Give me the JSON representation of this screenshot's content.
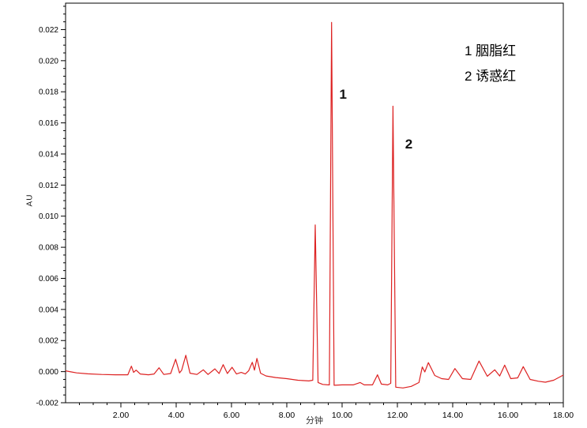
{
  "chart_data": {
    "type": "line",
    "xlabel": "分钟",
    "ylabel": "AU",
    "xlim": [
      0,
      18
    ],
    "ylim": [
      -0.002,
      0.0237
    ],
    "grid": false,
    "line_color": "#dd2222",
    "axis_color": "#000000",
    "background_color": "#ffffff",
    "x_ticks": {
      "major_values": [
        2,
        4,
        6,
        8,
        10,
        12,
        14,
        16,
        18
      ],
      "major_labels": [
        "2.00",
        "4.00",
        "6.00",
        "8.00",
        "10.00",
        "12.00",
        "14.00",
        "16.00",
        "18.00"
      ],
      "minor_step": 0.5
    },
    "y_ticks": {
      "major_values": [
        -0.002,
        0.0,
        0.002,
        0.004,
        0.006,
        0.008,
        0.01,
        0.012,
        0.014,
        0.016,
        0.018,
        0.02,
        0.022
      ],
      "major_labels": [
        "-0.002",
        "0.000",
        "0.002",
        "0.004",
        "0.006",
        "0.008",
        "0.010",
        "0.012",
        "0.014",
        "0.016",
        "0.018",
        "0.020",
        "0.022"
      ],
      "minor_step": 0.0005
    },
    "legend": [
      "1 胭脂红",
      "2 诱惑红"
    ],
    "legend_position": "top-right",
    "annotations": [
      {
        "text": "1",
        "x": 9.9,
        "y": 0.0178
      },
      {
        "text": "2",
        "x": 12.28,
        "y": 0.0146
      }
    ],
    "peaks": [
      {
        "label": "1",
        "name": "胭脂红",
        "retention_time_min": 9.62,
        "height_au": 0.0225
      },
      {
        "label": "2",
        "name": "诱惑红",
        "retention_time_min": 11.84,
        "height_au": 0.0171
      }
    ],
    "series": [
      {
        "name": "chromatogram-trace",
        "points": [
          [
            0.0,
            5e-05
          ],
          [
            0.15,
            0.0
          ],
          [
            0.4,
            -8e-05
          ],
          [
            0.8,
            -0.00014
          ],
          [
            1.3,
            -0.00018
          ],
          [
            1.8,
            -0.0002
          ],
          [
            2.25,
            -0.0002
          ],
          [
            2.38,
            0.00035
          ],
          [
            2.46,
            -5e-05
          ],
          [
            2.55,
            0.0001
          ],
          [
            2.7,
            -0.00015
          ],
          [
            3.0,
            -0.0002
          ],
          [
            3.2,
            -0.00015
          ],
          [
            3.38,
            0.00025
          ],
          [
            3.55,
            -0.00018
          ],
          [
            3.8,
            -0.00012
          ],
          [
            3.98,
            0.0008
          ],
          [
            4.12,
            -8e-05
          ],
          [
            4.2,
            0.0001
          ],
          [
            4.35,
            0.00105
          ],
          [
            4.5,
            -0.0001
          ],
          [
            4.75,
            -0.00018
          ],
          [
            4.98,
            0.00012
          ],
          [
            5.15,
            -0.00018
          ],
          [
            5.4,
            0.00018
          ],
          [
            5.55,
            -0.00012
          ],
          [
            5.7,
            0.00045
          ],
          [
            5.85,
            -0.00012
          ],
          [
            6.02,
            0.00028
          ],
          [
            6.18,
            -0.00015
          ],
          [
            6.35,
            -5e-05
          ],
          [
            6.5,
            -0.00015
          ],
          [
            6.62,
            5e-05
          ],
          [
            6.75,
            0.0006
          ],
          [
            6.83,
            0.0001
          ],
          [
            6.92,
            0.00085
          ],
          [
            7.05,
            -0.0001
          ],
          [
            7.25,
            -0.00028
          ],
          [
            7.6,
            -0.00038
          ],
          [
            8.0,
            -0.00045
          ],
          [
            8.4,
            -0.00055
          ],
          [
            8.8,
            -0.0006
          ],
          [
            8.94,
            -0.00055
          ],
          [
            9.03,
            0.00944
          ],
          [
            9.13,
            -0.0007
          ],
          [
            9.3,
            -0.00082
          ],
          [
            9.5,
            -0.00085
          ],
          [
            9.54,
            -0.00085
          ],
          [
            9.62,
            0.02246
          ],
          [
            9.71,
            -0.00088
          ],
          [
            10.0,
            -0.00085
          ],
          [
            10.4,
            -0.00085
          ],
          [
            10.65,
            -0.0007
          ],
          [
            10.8,
            -0.00085
          ],
          [
            11.1,
            -0.00085
          ],
          [
            11.28,
            -0.0002
          ],
          [
            11.42,
            -0.0008
          ],
          [
            11.65,
            -0.00085
          ],
          [
            11.76,
            -0.00075
          ],
          [
            11.84,
            0.01707
          ],
          [
            11.94,
            -0.001
          ],
          [
            12.2,
            -0.00105
          ],
          [
            12.5,
            -0.00095
          ],
          [
            12.78,
            -0.0007
          ],
          [
            12.9,
            0.0003
          ],
          [
            12.99,
            -2e-05
          ],
          [
            13.12,
            0.00058
          ],
          [
            13.35,
            -0.00025
          ],
          [
            13.6,
            -0.00045
          ],
          [
            13.85,
            -0.0005
          ],
          [
            14.08,
            0.0002
          ],
          [
            14.35,
            -0.00045
          ],
          [
            14.65,
            -0.0005
          ],
          [
            14.95,
            0.00068
          ],
          [
            15.25,
            -0.0003
          ],
          [
            15.52,
            0.00012
          ],
          [
            15.7,
            -0.00028
          ],
          [
            15.88,
            0.00042
          ],
          [
            16.1,
            -0.00045
          ],
          [
            16.35,
            -0.0004
          ],
          [
            16.55,
            0.00032
          ],
          [
            16.8,
            -0.0005
          ],
          [
            17.1,
            -0.00062
          ],
          [
            17.35,
            -0.00068
          ],
          [
            17.65,
            -0.00055
          ],
          [
            18.0,
            -0.00022
          ]
        ]
      }
    ]
  }
}
